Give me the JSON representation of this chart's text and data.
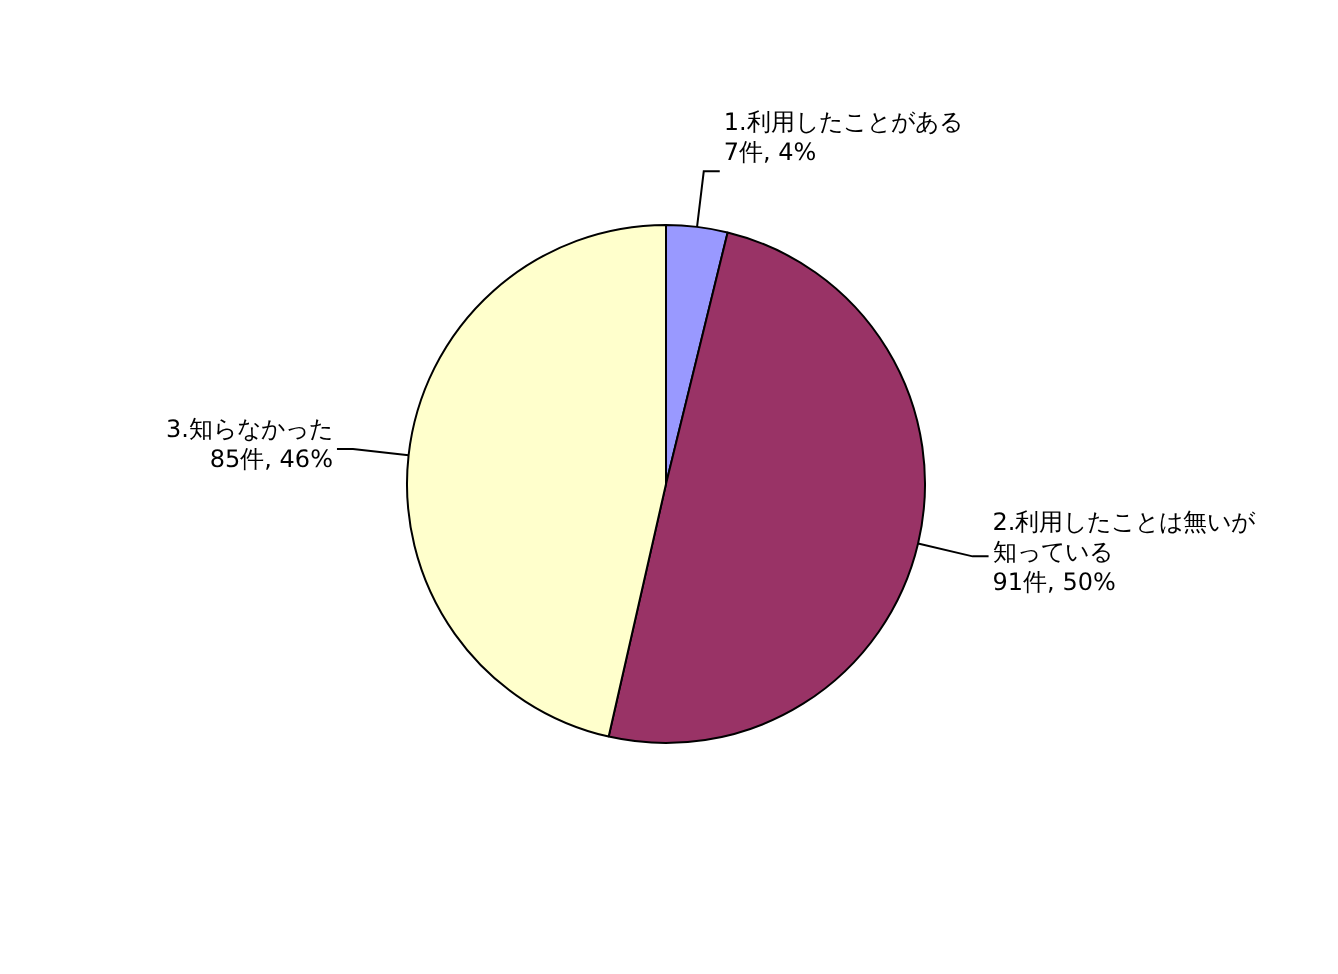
{
  "chart_data": {
    "type": "pie",
    "categories": [
      "1.利用したことがある",
      "2.利用したことは無いが知っている",
      "3.知らなかった"
    ],
    "values": [
      7,
      91,
      85
    ],
    "colors": [
      "#9999ff",
      "#993366",
      "#ffffcc"
    ],
    "value_labels": [
      "7件, 4%",
      "91件, 50%",
      "85件, 46%"
    ],
    "legend": false
  }
}
